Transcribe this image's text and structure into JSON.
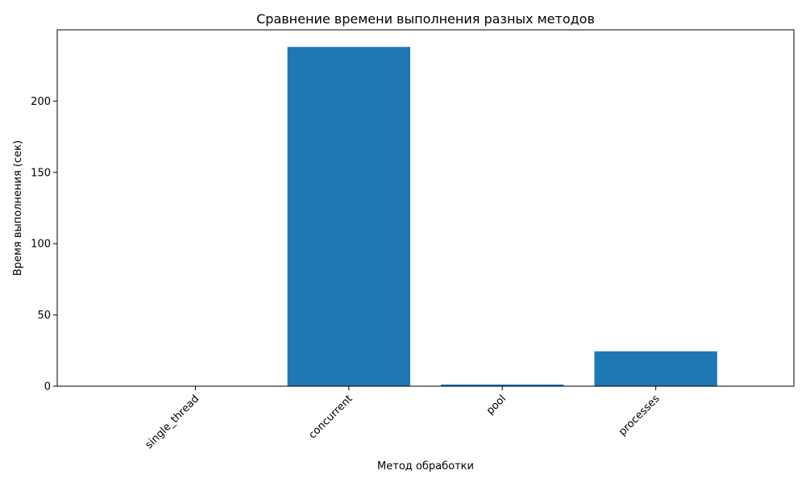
{
  "chart_data": {
    "type": "bar",
    "title": "Сравнение времени выполнения разных методов",
    "xlabel": "Метод обработки",
    "ylabel": "Время выполнения (сек)",
    "categories": [
      "single_thread",
      "concurrent",
      "pool",
      "processes"
    ],
    "values": [
      0.3,
      238,
      1.2,
      24.5
    ],
    "ylim": [
      0,
      250
    ],
    "yticks": [
      0,
      50,
      100,
      150,
      200
    ],
    "bar_color": "#1f77b4",
    "grid": false,
    "legend": false
  }
}
